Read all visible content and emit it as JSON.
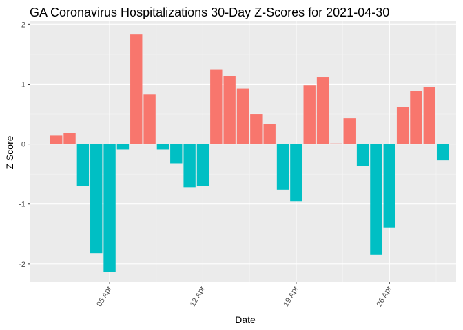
{
  "chart_data": {
    "type": "bar",
    "title": "GA Coronavirus Hospitalizations 30-Day Z-Scores for 2021-04-30",
    "xlabel": "Date",
    "ylabel": "Z Score",
    "ylim": [
      -2.3,
      2.05
    ],
    "yticks": [
      -2,
      -1,
      0,
      1,
      2
    ],
    "grid": true,
    "legend": "none",
    "x_start": "2021-04-01",
    "x_end": "2021-04-30",
    "x_range": [
      "2021-03-30",
      "2021-05-01"
    ],
    "xtick_dates": [
      "2021-04-05",
      "2021-04-12",
      "2021-04-19",
      "2021-04-26"
    ],
    "xtick_labels": [
      "05 Apr",
      "12 Apr",
      "19 Apr",
      "26 Apr"
    ],
    "values": [
      0.14,
      0.19,
      -0.7,
      -1.82,
      -2.13,
      -0.09,
      1.83,
      0.83,
      -0.09,
      -0.32,
      -0.72,
      -0.7,
      1.24,
      1.14,
      0.93,
      0.5,
      0.33,
      -0.76,
      -0.96,
      0.98,
      1.12,
      0.01,
      0.43,
      -0.37,
      -1.85,
      -1.39,
      0.62,
      0.88,
      0.95,
      -0.27
    ],
    "colors": {
      "positive": "#F8766D",
      "negative": "#00BFC4",
      "panel": "#EBEBEB",
      "grid_major": "#FFFFFF",
      "grid_minor": "#F5F5F5"
    }
  }
}
